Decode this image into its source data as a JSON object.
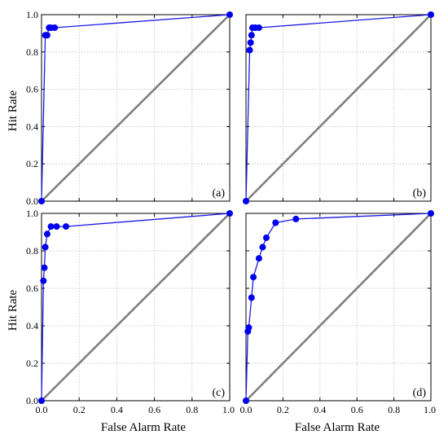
{
  "labels": {
    "y_axis": "Hit Rate",
    "x_axis": "False Alarm Rate"
  },
  "colors": {
    "roc_line": "#1a1ae6",
    "marker": "#0000ee",
    "diagonal": "#7f7f7f",
    "grid": "#bdbdbd",
    "frame": "#000000"
  },
  "chart_data": [
    {
      "type": "line",
      "panel_label": "(a)",
      "xlim": [
        0,
        1
      ],
      "ylim": [
        0,
        1
      ],
      "xticks": [
        "0.0",
        "0.2",
        "0.4",
        "0.6",
        "0.8",
        "1.0"
      ],
      "yticks": [
        "0.0",
        "0.2",
        "0.4",
        "0.6",
        "0.8",
        "1.0"
      ],
      "grid": true,
      "series": [
        {
          "role": "roc",
          "x": [
            0.0,
            0.02,
            0.03,
            0.04,
            0.05,
            0.07,
            1.0
          ],
          "y": [
            0.0,
            0.89,
            0.89,
            0.93,
            0.93,
            0.93,
            1.0
          ]
        },
        {
          "role": "diagonal",
          "x": [
            0,
            1
          ],
          "y": [
            0,
            1
          ]
        }
      ]
    },
    {
      "type": "line",
      "panel_label": "(b)",
      "xlim": [
        0,
        1
      ],
      "ylim": [
        0,
        1
      ],
      "xticks": [
        "0.0",
        "0.2",
        "0.4",
        "0.6",
        "0.8",
        "1.0"
      ],
      "yticks": [
        "0.0",
        "0.2",
        "0.4",
        "0.6",
        "0.8",
        "1.0"
      ],
      "grid": true,
      "series": [
        {
          "role": "roc",
          "x": [
            0.0,
            0.02,
            0.025,
            0.03,
            0.035,
            0.05,
            0.07,
            1.0
          ],
          "y": [
            0.0,
            0.81,
            0.85,
            0.89,
            0.93,
            0.93,
            0.93,
            1.0
          ]
        },
        {
          "role": "diagonal",
          "x": [
            0,
            1
          ],
          "y": [
            0,
            1
          ]
        }
      ]
    },
    {
      "type": "line",
      "panel_label": "(c)",
      "xlim": [
        0,
        1
      ],
      "ylim": [
        0,
        1
      ],
      "xticks": [
        "0.0",
        "0.2",
        "0.4",
        "0.6",
        "0.8",
        "1.0"
      ],
      "yticks": [
        "0.0",
        "0.2",
        "0.4",
        "0.6",
        "0.8",
        "1.0"
      ],
      "grid": true,
      "series": [
        {
          "role": "roc",
          "x": [
            0.0,
            0.01,
            0.015,
            0.02,
            0.03,
            0.05,
            0.08,
            0.13,
            1.0
          ],
          "y": [
            0.0,
            0.64,
            0.71,
            0.82,
            0.89,
            0.93,
            0.93,
            0.93,
            1.0
          ]
        },
        {
          "role": "diagonal",
          "x": [
            0,
            1
          ],
          "y": [
            0,
            1
          ]
        }
      ]
    },
    {
      "type": "line",
      "panel_label": "(d)",
      "xlim": [
        0,
        1
      ],
      "ylim": [
        0,
        1
      ],
      "xticks": [
        "0.0",
        "0.2",
        "0.4",
        "0.6",
        "0.8",
        "1.0"
      ],
      "yticks": [
        "0.0",
        "0.2",
        "0.4",
        "0.6",
        "0.8",
        "1.0"
      ],
      "grid": true,
      "series": [
        {
          "role": "roc",
          "x": [
            0.0,
            0.01,
            0.015,
            0.03,
            0.04,
            0.07,
            0.09,
            0.11,
            0.16,
            0.27,
            1.0
          ],
          "y": [
            0.0,
            0.37,
            0.39,
            0.55,
            0.66,
            0.76,
            0.82,
            0.87,
            0.95,
            0.97,
            1.0
          ]
        },
        {
          "role": "diagonal",
          "x": [
            0,
            1
          ],
          "y": [
            0,
            1
          ]
        }
      ]
    }
  ]
}
